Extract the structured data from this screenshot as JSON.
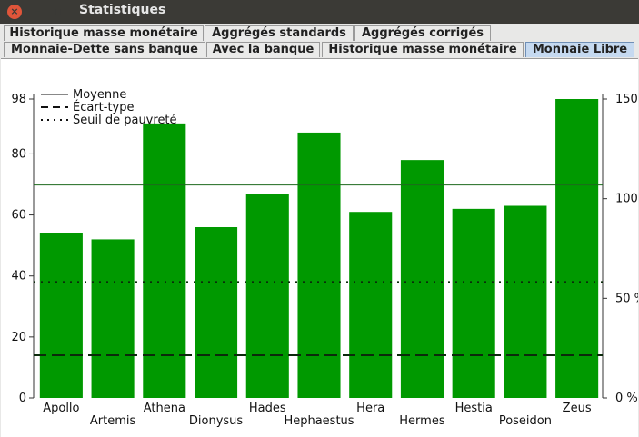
{
  "window": {
    "title": "Statistiques",
    "close_glyph": "×",
    "minimize_glyph": "–",
    "maximize_glyph": "▫"
  },
  "tabs_row1": [
    {
      "label": "Historique masse monétaire"
    },
    {
      "label": "Aggrégés standards"
    },
    {
      "label": "Aggrégés corrigés"
    }
  ],
  "tabs_row2": [
    {
      "label": "Monnaie-Dette sans banque"
    },
    {
      "label": "Avec la banque"
    },
    {
      "label": "Historique masse monétaire"
    },
    {
      "label": "Monnaie Libre",
      "selected": true
    }
  ],
  "chart_data": {
    "type": "bar",
    "categories": [
      "Apollo",
      "Artemis",
      "Athena",
      "Dionysus",
      "Hades",
      "Hephaestus",
      "Hera",
      "Hermes",
      "Hestia",
      "Poseidon",
      "Zeus"
    ],
    "values": [
      54,
      52,
      90,
      56,
      67,
      87,
      61,
      78,
      62,
      63,
      98
    ],
    "bar_color": "#009900",
    "ylim": [
      0,
      98
    ],
    "yticks": [
      "0",
      "20",
      "40",
      "60",
      "80",
      "98"
    ],
    "y2_ticks": [
      "0 %",
      "50 %",
      "100 %",
      "150 %"
    ],
    "y2_range": [
      0,
      150
    ],
    "legend": {
      "placement": "top-left",
      "entries": [
        "Moyenne",
        "Écart-type",
        "Seuil de pauvreté"
      ]
    },
    "reference_lines": {
      "moyenne": 69.8,
      "ecart_type": 14,
      "seuil_pauvrete": 38
    }
  }
}
